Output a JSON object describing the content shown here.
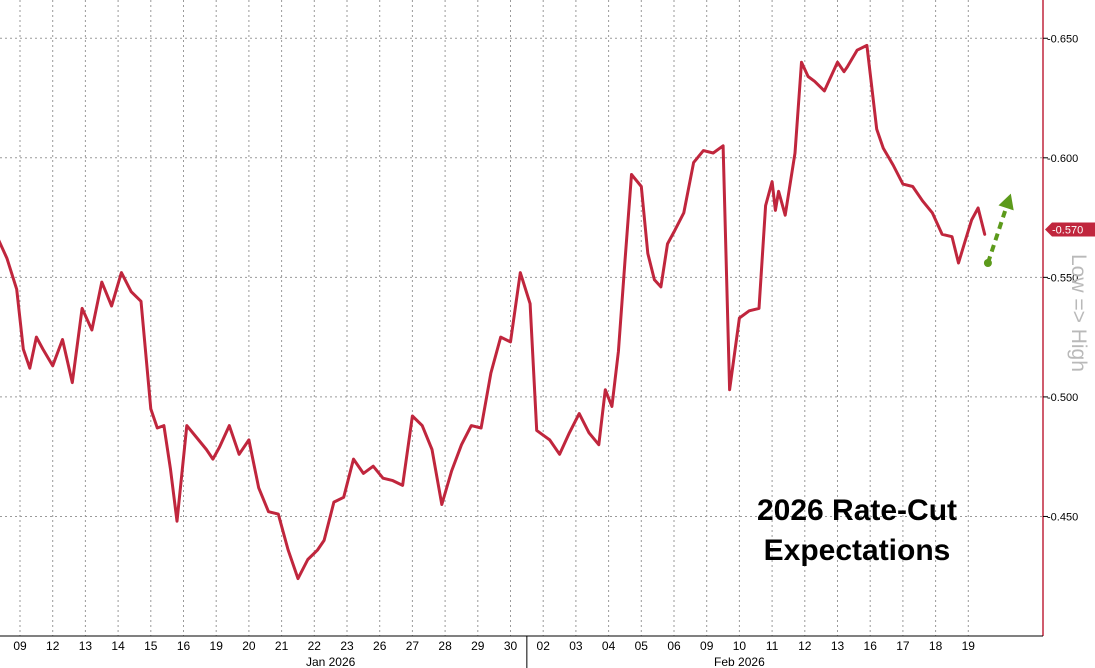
{
  "chart_data": {
    "type": "line",
    "title": "",
    "annotation_lines": [
      "2026 Rate-Cut",
      "Expectations"
    ],
    "side_label": "Low => High",
    "y_ticks": [
      "-0.650",
      "-0.600",
      "-0.550",
      "-0.500",
      "-0.450"
    ],
    "y_tick_values": [
      0.65,
      0.6,
      0.55,
      0.5,
      0.45
    ],
    "ylim": [
      0.4,
      0.666
    ],
    "y_axis_position": "right",
    "last_value_label": "-0.570",
    "last_value": 0.57,
    "x_ticks": [
      "09",
      "12",
      "13",
      "14",
      "15",
      "16",
      "19",
      "20",
      "21",
      "22",
      "23",
      "26",
      "27",
      "28",
      "29",
      "30",
      "02",
      "03",
      "04",
      "05",
      "06",
      "09",
      "10",
      "11",
      "12",
      "13",
      "16",
      "17",
      "18",
      "19"
    ],
    "month_labels": [
      {
        "label": "Jan 2026",
        "at_tick": 9.5
      },
      {
        "label": "Feb 2026",
        "at_tick": 22
      }
    ],
    "month_divider_at": 15.5,
    "grid": true,
    "line_color": "#c0263d",
    "arrow_color": "#5c9a1b",
    "series": [
      {
        "name": "",
        "x": [
          -0.7,
          -0.4,
          -0.1,
          0.1,
          0.3,
          0.5,
          0.7,
          1.0,
          1.3,
          1.6,
          1.9,
          2.2,
          2.5,
          2.8,
          3.1,
          3.4,
          3.7,
          4.0,
          4.2,
          4.4,
          4.6,
          4.8,
          5.1,
          5.4,
          5.7,
          5.9,
          6.1,
          6.4,
          6.7,
          7.0,
          7.3,
          7.6,
          7.9,
          8.2,
          8.5,
          8.8,
          9.1,
          9.3,
          9.6,
          9.9,
          10.2,
          10.5,
          10.8,
          11.1,
          11.4,
          11.7,
          12.0,
          12.3,
          12.6,
          12.9,
          13.2,
          13.5,
          13.8,
          14.1,
          14.4,
          14.7,
          15.0,
          15.3,
          15.6,
          15.8,
          16.0,
          16.2,
          16.5,
          16.8,
          17.1,
          17.4,
          17.7,
          17.9,
          18.1,
          18.3,
          18.5,
          18.7,
          19.0,
          19.2,
          19.4,
          19.6,
          19.8,
          20.0,
          20.3,
          20.6,
          20.9,
          21.2,
          21.5,
          21.7,
          22.0,
          22.3,
          22.6,
          22.8,
          23.0,
          23.1,
          23.2,
          23.4,
          23.7,
          23.9,
          24.1,
          24.3,
          24.6,
          25.0,
          25.2,
          25.3,
          25.6,
          25.9,
          26.2,
          26.4,
          26.7,
          27.0,
          27.3,
          27.6,
          27.9,
          28.2,
          28.5,
          28.7,
          28.9,
          29.1,
          29.3,
          29.5
        ],
        "values": [
          0.567,
          0.558,
          0.545,
          0.52,
          0.512,
          0.525,
          0.52,
          0.513,
          0.524,
          0.506,
          0.537,
          0.528,
          0.548,
          0.538,
          0.552,
          0.544,
          0.54,
          0.495,
          0.487,
          0.488,
          0.47,
          0.448,
          0.488,
          0.483,
          0.478,
          0.474,
          0.479,
          0.488,
          0.476,
          0.482,
          0.462,
          0.452,
          0.451,
          0.436,
          0.424,
          0.432,
          0.436,
          0.44,
          0.456,
          0.458,
          0.474,
          0.468,
          0.471,
          0.466,
          0.465,
          0.463,
          0.492,
          0.488,
          0.478,
          0.455,
          0.469,
          0.48,
          0.488,
          0.487,
          0.51,
          0.525,
          0.523,
          0.552,
          0.539,
          0.486,
          0.484,
          0.482,
          0.476,
          0.485,
          0.493,
          0.485,
          0.48,
          0.503,
          0.496,
          0.519,
          0.557,
          0.593,
          0.588,
          0.56,
          0.549,
          0.546,
          0.564,
          0.569,
          0.577,
          0.598,
          0.603,
          0.602,
          0.605,
          0.503,
          0.533,
          0.536,
          0.537,
          0.58,
          0.59,
          0.578,
          0.586,
          0.576,
          0.602,
          0.64,
          0.634,
          0.632,
          0.628,
          0.64,
          0.636,
          0.638,
          0.645,
          0.647,
          0.612,
          0.604,
          0.597,
          0.589,
          0.588,
          0.582,
          0.577,
          0.568,
          0.567,
          0.556,
          0.565,
          0.574,
          0.579,
          0.568
        ]
      }
    ],
    "arrow": {
      "from": [
        29.6,
        0.556
      ],
      "to": [
        30.3,
        0.585
      ]
    }
  }
}
